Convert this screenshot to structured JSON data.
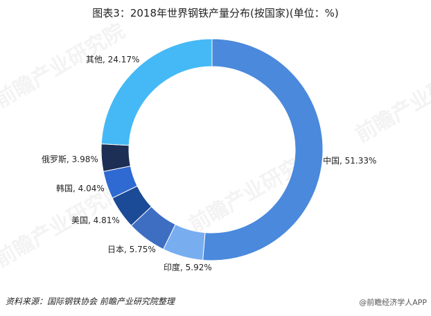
{
  "title": "图表3：2018年世界钢铁产量分布(按国家)(单位：%)",
  "source": "资料来源：国际钢铁协会 前瞻产业研究院整理",
  "credit": "@前瞻经济学人APP",
  "watermark": "前瞻产业研究院",
  "chart_data": {
    "type": "pie",
    "variant": "donut",
    "title": "图表3：2018年世界钢铁产量分布(按国家)(单位：%)",
    "unit": "%",
    "slices": [
      {
        "name": "中国",
        "value": 51.33,
        "label": "中国, 51.33%",
        "color": "#4A89DC"
      },
      {
        "name": "印度",
        "value": 5.92,
        "label": "印度, 5.92%",
        "color": "#78AEEF"
      },
      {
        "name": "日本",
        "value": 5.75,
        "label": "日本, 5.75%",
        "color": "#3E6EC2"
      },
      {
        "name": "美国",
        "value": 4.81,
        "label": "美国, 4.81%",
        "color": "#1B4A96"
      },
      {
        "name": "韩国",
        "value": 4.04,
        "label": "韩国, 4.04%",
        "color": "#2F6AD2"
      },
      {
        "name": "俄罗斯",
        "value": 3.98,
        "label": "俄罗斯, 3.98%",
        "color": "#1D2F55"
      },
      {
        "name": "其他",
        "value": 24.17,
        "label": "其他, 24.17%",
        "color": "#45B9F5"
      }
    ],
    "legend": "none"
  }
}
